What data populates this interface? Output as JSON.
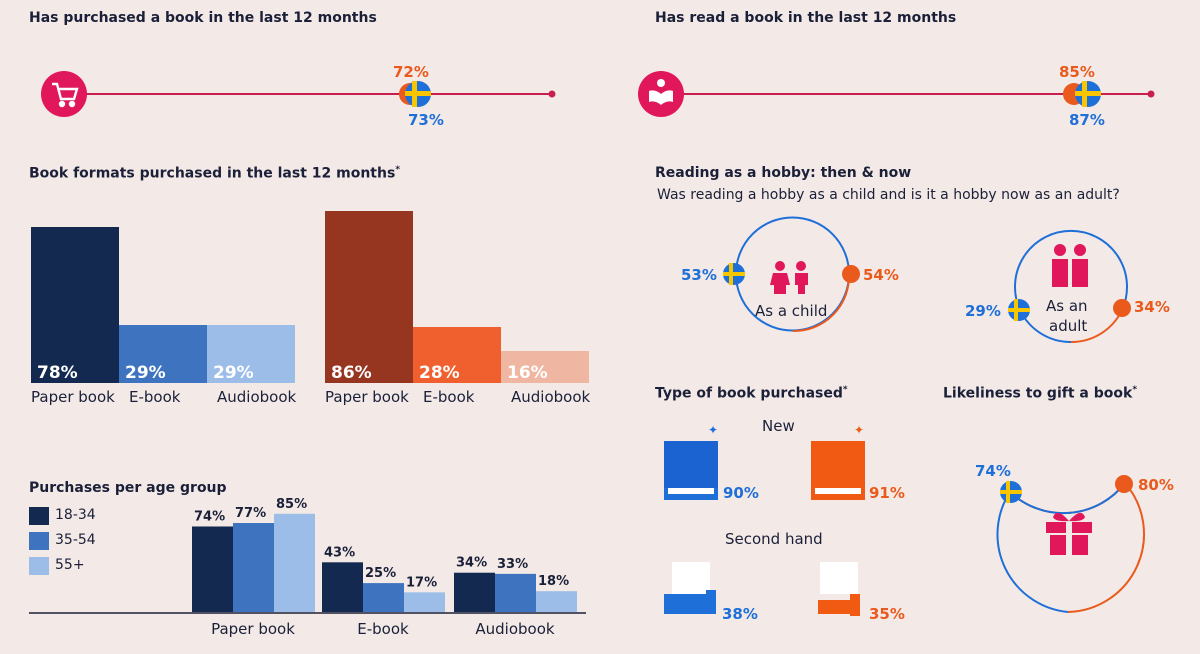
{
  "purchased": {
    "title": "Has purchased a book in the last 12 months",
    "value_orange": "72%",
    "value_blue": "73%"
  },
  "read": {
    "title": "Has read a book in the last 12 months",
    "value_orange": "85%",
    "value_blue": "87%"
  },
  "formats": {
    "title": "Book formats purchased in the last 12 months",
    "asterisk": "*",
    "categories": [
      "Paper book",
      "E-book",
      "Audiobook"
    ],
    "blue_values": [
      "78%",
      "29%",
      "29%"
    ],
    "orange_values": [
      "86%",
      "28%",
      "16%"
    ]
  },
  "age": {
    "title": "Purchases per age group",
    "legend": [
      "18-34",
      "35-54",
      "55+"
    ],
    "categories": [
      "Paper book",
      "E-book",
      "Audiobook"
    ]
  },
  "hobby": {
    "title": "Reading as a hobby: then & now",
    "question": "Was reading a hobby as a child and is it a hobby now as an adult?",
    "child_label": "As a child",
    "child_blue": "53%",
    "child_orange": "54%",
    "adult_label_1": "As an",
    "adult_label_2": "adult",
    "adult_blue": "29%",
    "adult_orange": "34%"
  },
  "type": {
    "title": "Type of book purchased",
    "asterisk": "*",
    "new_label": "New",
    "new_blue": "90%",
    "new_orange": "91%",
    "second_label": "Second hand",
    "second_blue": "38%",
    "second_orange": "35%"
  },
  "gift": {
    "title": "Likeliness to gift a book",
    "asterisk": "*",
    "blue": "74%",
    "orange": "80%"
  },
  "chart_data": [
    {
      "type": "bar",
      "title": "Book formats purchased in the last 12 months",
      "categories": [
        "Paper book",
        "E-book",
        "Audiobook"
      ],
      "series": [
        {
          "values": [
            78,
            29,
            29
          ]
        },
        {
          "values": [
            86,
            28,
            16
          ]
        }
      ],
      "ylim": [
        0,
        100
      ]
    },
    {
      "type": "bar",
      "title": "Purchases per age group",
      "categories": [
        "Paper book",
        "E-book",
        "Audiobook"
      ],
      "series": [
        {
          "name": "18-34",
          "values": [
            74,
            43,
            34
          ]
        },
        {
          "name": "35-54",
          "values": [
            77,
            25,
            33
          ]
        },
        {
          "name": "55+",
          "values": [
            85,
            17,
            18
          ]
        }
      ],
      "ylim": [
        0,
        100
      ]
    }
  ],
  "colors": {
    "navy": "#13294f",
    "mid_blue": "#3d73bf",
    "light_blue": "#9cbde7",
    "rust": "#963520",
    "orange": "#f0602e",
    "peach": "#efb7a2",
    "accent_blue": "#1f6fd8",
    "accent_orange": "#ea5a1c",
    "pink": "#e0175b"
  }
}
